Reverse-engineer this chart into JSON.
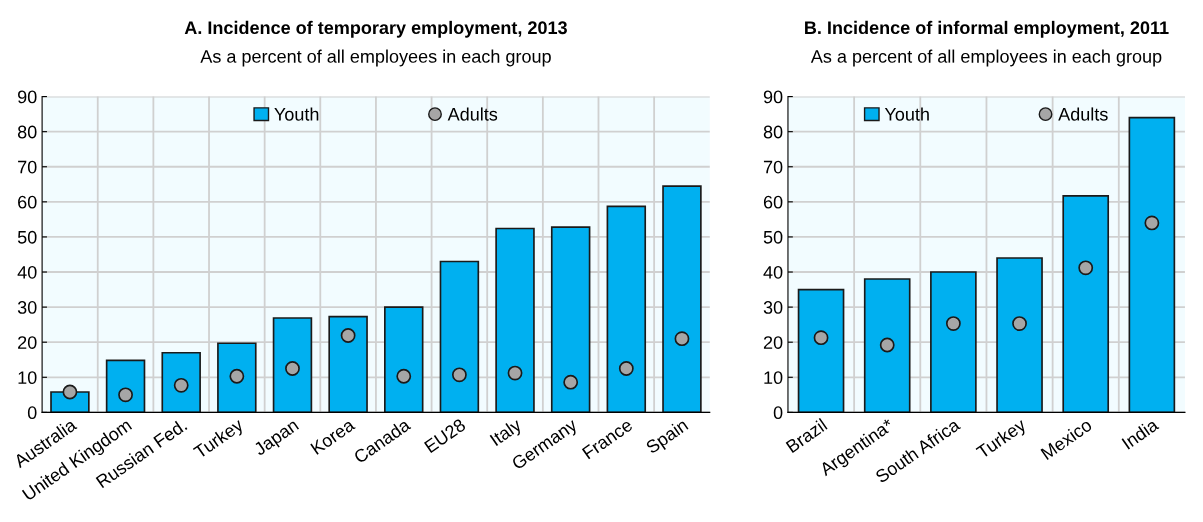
{
  "chart_data": [
    {
      "type": "bar",
      "title": "A. Incidence of temporary employment, 2013",
      "subtitle": "As a percent of all employees in each group",
      "categories": [
        "Australia",
        "United Kingdom",
        "Russian Fed.",
        "Turkey",
        "Japan",
        "Korea",
        "Canada",
        "EU28",
        "Italy",
        "Germany",
        "France",
        "Spain"
      ],
      "series": [
        {
          "name": "Youth",
          "color": "#00b0f0",
          "values": [
            5.8,
            14.8,
            17,
            19.7,
            26.9,
            27.3,
            30,
            43,
            52.4,
            52.8,
            58.7,
            64.5
          ]
        },
        {
          "name": "Adults",
          "type": "scatter",
          "color": "#a6a6a6",
          "x": [
            "Australia",
            "United Kingdom",
            "Russian Fed.",
            "Turkey",
            "Japan",
            "Korea",
            "Canada",
            "EU28",
            "Italy",
            "Germany",
            "France",
            "Spain"
          ],
          "values": [
            5.8,
            5,
            7.7,
            10.3,
            12.5,
            21.9,
            10.3,
            10.7,
            11.2,
            8.6,
            12.5,
            21
          ]
        }
      ],
      "ylim": [
        0,
        90
      ],
      "yticks": [
        0,
        10,
        20,
        30,
        40,
        50,
        60,
        70,
        80,
        90
      ],
      "grid": true,
      "legend": "top",
      "marker": "circle"
    },
    {
      "type": "bar",
      "title": "B. Incidence of informal employment, 2011",
      "subtitle": "As a percent of all employees in each group",
      "categories": [
        "Brazil",
        "Argentina*",
        "South Africa",
        "Turkey",
        "Mexico",
        "India"
      ],
      "series": [
        {
          "name": "Youth",
          "color": "#00b0f0",
          "values": [
            35,
            38,
            40,
            44,
            61.7,
            84
          ]
        },
        {
          "name": "Adults",
          "type": "scatter",
          "color": "#a6a6a6",
          "x": [
            "Brazil",
            "Argentina*",
            "South Africa",
            "Turkey",
            "Mexico",
            "India"
          ],
          "values": [
            21.3,
            19.2,
            25.3,
            25.3,
            41.2,
            54
          ]
        }
      ],
      "ylim": [
        0,
        90
      ],
      "yticks": [
        0,
        10,
        20,
        30,
        40,
        50,
        60,
        70,
        80,
        90
      ],
      "grid": true,
      "legend": "top",
      "marker": "circle"
    }
  ]
}
